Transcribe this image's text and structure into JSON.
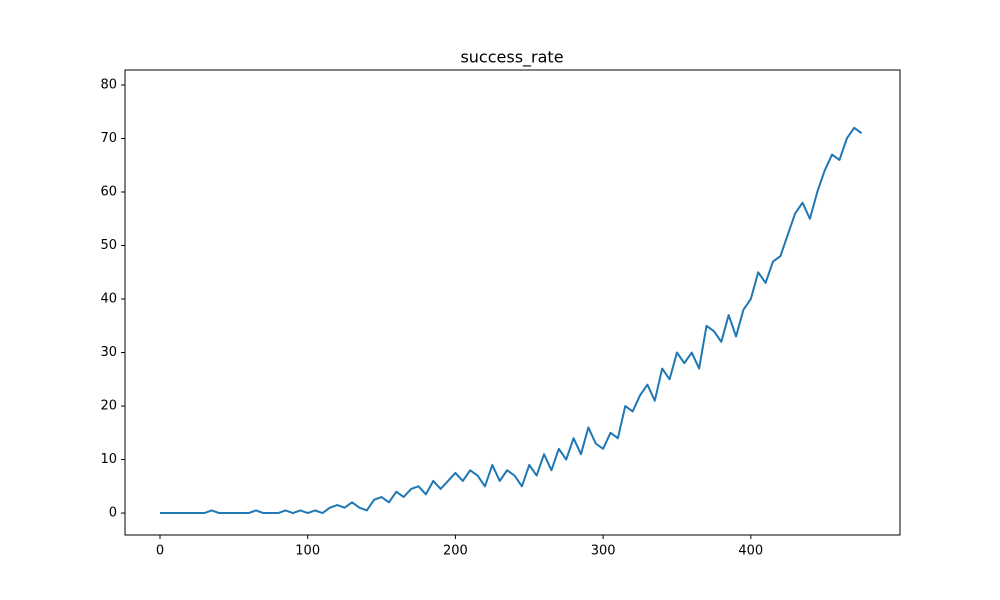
{
  "chart_data": {
    "type": "line",
    "title": "success_rate",
    "x": [
      0,
      5,
      10,
      15,
      20,
      25,
      30,
      35,
      40,
      45,
      50,
      55,
      60,
      65,
      70,
      75,
      80,
      85,
      90,
      95,
      100,
      105,
      110,
      115,
      120,
      125,
      130,
      135,
      140,
      145,
      150,
      155,
      160,
      165,
      170,
      175,
      180,
      185,
      190,
      195,
      200,
      205,
      210,
      215,
      220,
      225,
      230,
      235,
      240,
      245,
      250,
      255,
      260,
      265,
      270,
      275,
      280,
      285,
      290,
      295,
      300,
      305,
      310,
      315,
      320,
      325,
      330,
      335,
      340,
      345,
      350,
      355,
      360,
      365,
      370,
      375,
      380,
      385,
      390,
      395,
      400,
      405,
      410,
      415,
      420,
      425,
      430,
      435,
      440,
      445,
      450,
      455,
      460,
      465,
      470,
      475
    ],
    "series": [
      {
        "color": "#1f77b4",
        "values": [
          0,
          0,
          0,
          0,
          0,
          0,
          0,
          0.5,
          0,
          0,
          0,
          0,
          0,
          0.5,
          0,
          0,
          0,
          0.5,
          0,
          0.5,
          0,
          0.5,
          0,
          1,
          1.5,
          1,
          2,
          1,
          0.5,
          2.5,
          3,
          2,
          4,
          3,
          4.5,
          5,
          3.5,
          6,
          4.5,
          6,
          7.5,
          6,
          8,
          7,
          5,
          9,
          6,
          8,
          7,
          5,
          9,
          7,
          11,
          8,
          12,
          10,
          14,
          11,
          16,
          13,
          12,
          15,
          14,
          20,
          19,
          22,
          24,
          21,
          27,
          25,
          30,
          28,
          30,
          27,
          35,
          34,
          32,
          37,
          33,
          38,
          40,
          45,
          43,
          47,
          48,
          52,
          56,
          58,
          55,
          60,
          64,
          67,
          66,
          70,
          72,
          71
        ]
      }
    ],
    "xlim": [
      -23.7,
      501
    ],
    "ylim": [
      -4.1,
      82.8
    ],
    "xticks": [
      0,
      100,
      200,
      300,
      400
    ],
    "yticks": [
      0,
      10,
      20,
      30,
      40,
      50,
      60,
      70,
      80
    ]
  }
}
